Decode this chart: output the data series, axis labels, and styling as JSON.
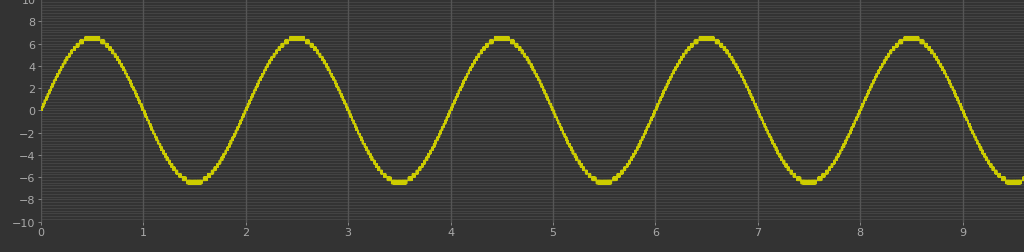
{
  "background_color": "#333333",
  "plot_bg_color": "#333333",
  "xlim": [
    0,
    9.6
  ],
  "ylim": [
    -10,
    10
  ],
  "xticks": [
    0,
    1,
    2,
    3,
    4,
    5,
    6,
    7,
    8,
    9
  ],
  "yticks": [
    -10,
    -8,
    -6,
    -4,
    -2,
    0,
    2,
    4,
    6,
    8,
    10
  ],
  "signal_amplitude": 6.5,
  "signal_frequency": 0.5,
  "sampling_rate": 2000,
  "sine_color": "#2222cc",
  "sd_color": "#cccc00",
  "sine_linewidth": 1.5,
  "sd_linewidth": 1.0,
  "grid_color_h": "#4a4a4a",
  "grid_color_v": "#555555",
  "tick_color": "#aaaaaa",
  "tick_fontsize": 8,
  "hgrid_linewidth": 0.5,
  "vgrid_linewidth": 1.0,
  "num_hgrid_lines": 80,
  "figsize": [
    10.24,
    2.53
  ],
  "dpi": 100
}
